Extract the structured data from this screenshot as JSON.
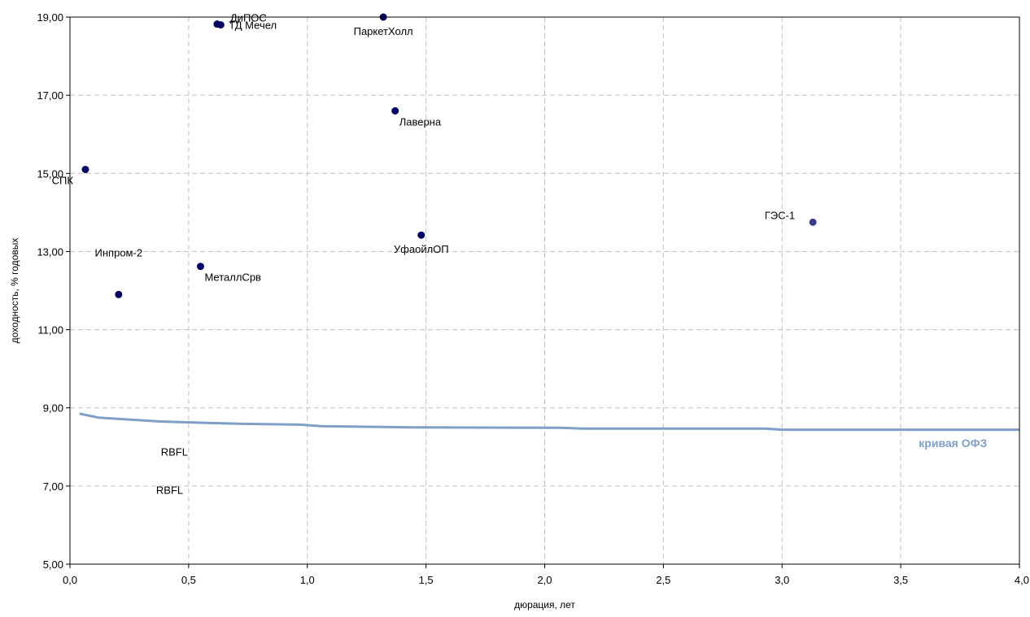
{
  "chart_data": {
    "type": "scatter",
    "title": "",
    "xlabel": "дюрация, лет",
    "ylabel": "доходность, % годовых",
    "xlim": [
      0,
      4
    ],
    "ylim": [
      5,
      19
    ],
    "x_ticks": [
      0,
      0.5,
      1,
      1.5,
      2,
      2.5,
      3,
      3.5,
      4
    ],
    "x_tick_labels": [
      "0,0",
      "0,5",
      "1,0",
      "1,5",
      "2,0",
      "2,5",
      "3,0",
      "3,5",
      "4,0"
    ],
    "y_ticks": [
      5,
      7,
      9,
      11,
      13,
      15,
      17,
      19
    ],
    "y_tick_labels": [
      "5,00",
      "7,00",
      "9,00",
      "11,00",
      "13,00",
      "15,00",
      "17,00",
      "19,00"
    ],
    "grid": true,
    "points": [
      {
        "label": "ДиПОС",
        "x": 0.62,
        "y": 18.82,
        "color": "#000066",
        "label_pos": "above-right"
      },
      {
        "label": "ТД Мечел",
        "x": 0.635,
        "y": 18.8,
        "color": "#000066",
        "label_pos": "right"
      },
      {
        "label": "ПаркетХолл",
        "x": 1.32,
        "y": 19.0,
        "color": "#000066",
        "label_pos": "below"
      },
      {
        "label": "Лаверна",
        "x": 1.37,
        "y": 16.6,
        "color": "#000066",
        "label_pos": "below-right"
      },
      {
        "label": "СПК",
        "x": 0.065,
        "y": 15.1,
        "color": "#000066",
        "label_pos": "below-left"
      },
      {
        "label": "ГЭС-1",
        "x": 3.13,
        "y": 13.75,
        "color": "#3c3c8c",
        "label_pos": "left"
      },
      {
        "label": "УфаойлОП",
        "x": 1.48,
        "y": 13.42,
        "color": "#000066",
        "label_pos": "below"
      },
      {
        "label": "Инпром-2",
        "x": 0.205,
        "y": 11.9,
        "color": "#000066",
        "label_pos": "above-right"
      },
      {
        "label": "МеталлСрв",
        "x": 0.55,
        "y": 12.62,
        "color": "#000066",
        "label_pos": "below-right"
      }
    ],
    "extra_labels": [
      {
        "text": "RBFL",
        "x": 0.44,
        "y": 7.78
      },
      {
        "text": "RBFL",
        "x": 0.42,
        "y": 6.8
      }
    ],
    "series": [
      {
        "name": "кривая ОФЗ",
        "color": "#7f9fc6",
        "label_at": {
          "x": 3.72,
          "y": 8.0
        },
        "x": [
          0.04,
          0.12,
          0.25,
          0.38,
          0.55,
          0.73,
          0.97,
          1.06,
          1.47,
          2.07,
          2.16,
          2.93,
          3.0,
          4.0
        ],
        "y": [
          8.85,
          8.75,
          8.7,
          8.65,
          8.62,
          8.59,
          8.57,
          8.53,
          8.5,
          8.49,
          8.47,
          8.47,
          8.44,
          8.44
        ]
      }
    ]
  }
}
